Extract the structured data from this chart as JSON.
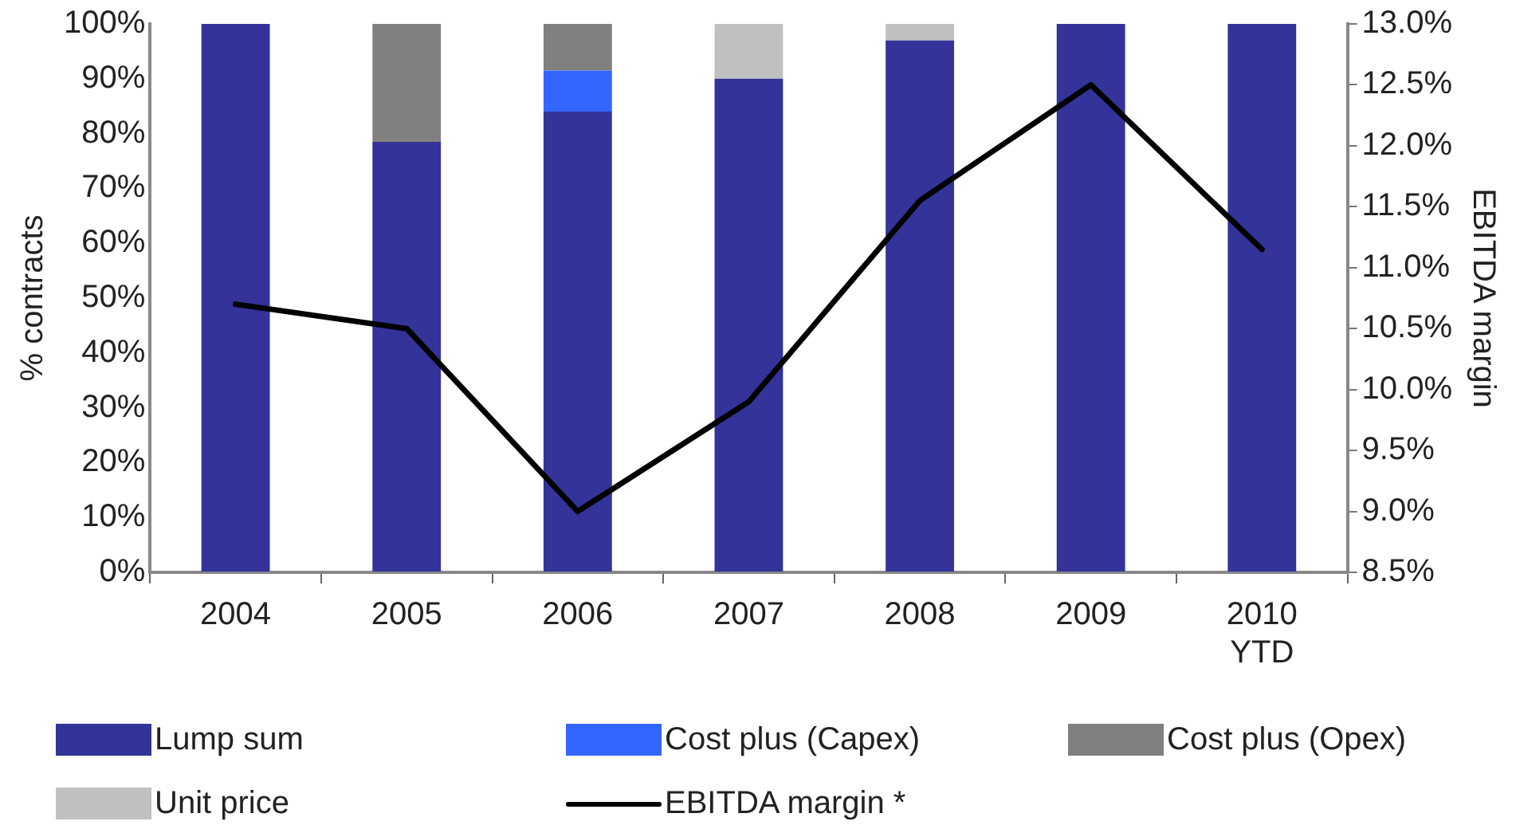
{
  "chart_data": {
    "type": "bar",
    "stacked": true,
    "ylabel": "% contracts",
    "y2label": "EBITDA margin",
    "categories": [
      "2004",
      "2005",
      "2006",
      "2007",
      "2008",
      "2009",
      "2010 YTD"
    ],
    "ylim": [
      0,
      100
    ],
    "yticks": [
      {
        "value": 0,
        "label": "0%"
      },
      {
        "value": 10,
        "label": "10%"
      },
      {
        "value": 20,
        "label": "20%"
      },
      {
        "value": 30,
        "label": "30%"
      },
      {
        "value": 40,
        "label": "40%"
      },
      {
        "value": 50,
        "label": "50%"
      },
      {
        "value": 60,
        "label": "60%"
      },
      {
        "value": 70,
        "label": "70%"
      },
      {
        "value": 80,
        "label": "80%"
      },
      {
        "value": 90,
        "label": "90%"
      },
      {
        "value": 100,
        "label": "100%"
      }
    ],
    "y2lim": [
      8.5,
      13.0
    ],
    "y2ticks": [
      {
        "value": 8.5,
        "label": "8.5%"
      },
      {
        "value": 9.0,
        "label": "9.0%"
      },
      {
        "value": 9.5,
        "label": "9.5%"
      },
      {
        "value": 10.0,
        "label": "10.0%"
      },
      {
        "value": 10.5,
        "label": "10.5%"
      },
      {
        "value": 11.0,
        "label": "11.0%"
      },
      {
        "value": 11.5,
        "label": "11.5%"
      },
      {
        "value": 12.0,
        "label": "12.0%"
      },
      {
        "value": 12.5,
        "label": "12.5%"
      },
      {
        "value": 13.0,
        "label": "13.0%"
      }
    ],
    "series": [
      {
        "name": "Lump sum",
        "color": "#333399",
        "values": [
          100,
          78.5,
          84,
          90,
          97,
          100,
          100
        ]
      },
      {
        "name": "Cost plus (Capex)",
        "color": "#3366ff",
        "values": [
          0,
          0,
          7.5,
          0,
          0,
          0,
          0
        ]
      },
      {
        "name": "Cost plus (Opex)",
        "color": "#808080",
        "values": [
          0,
          21.5,
          8.5,
          0,
          0,
          0,
          0
        ]
      },
      {
        "name": "Unit price",
        "color": "#c0c0c0",
        "values": [
          0,
          0,
          0,
          10,
          3,
          0,
          0
        ]
      },
      {
        "name": "EBITDA margin *",
        "type": "line",
        "axis": "y2",
        "color": "#000000",
        "values": [
          10.7,
          10.5,
          9.0,
          9.9,
          11.55,
          12.5,
          11.15
        ]
      }
    ],
    "grid": false,
    "legend": "bottom",
    "marker": "none",
    "line_style": "solid"
  }
}
